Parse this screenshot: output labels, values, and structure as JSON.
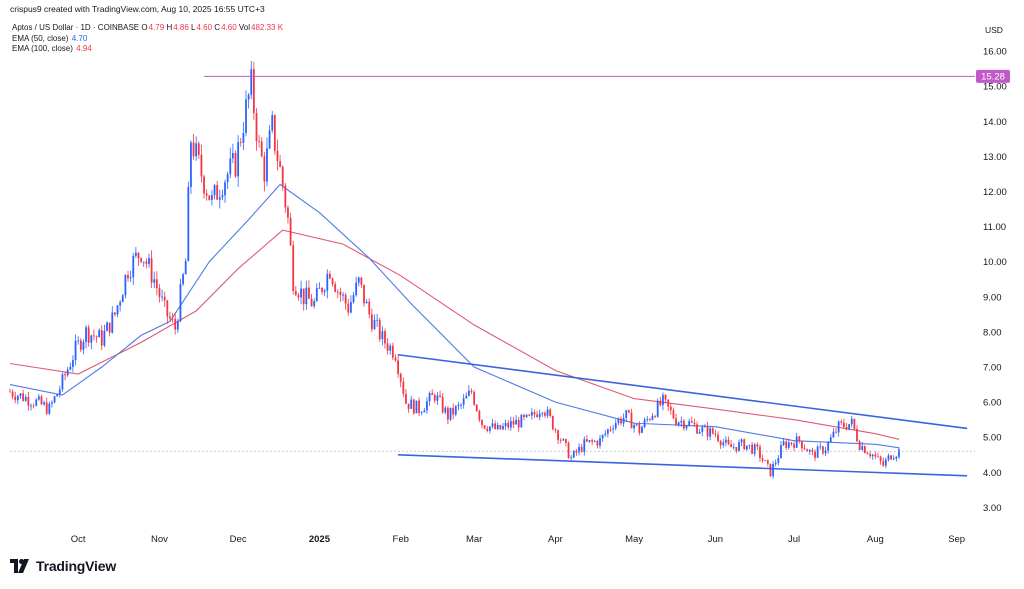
{
  "header": {
    "credit": "crispus9 created with TradingView.com, Aug 10, 2025 16:55 UTC+3"
  },
  "legend": {
    "symbol": "Aptos / US Dollar · 1D · COINBASE",
    "ohlc": [
      {
        "label": "O",
        "value": "4.79"
      },
      {
        "label": "H",
        "value": "4.86"
      },
      {
        "label": "L",
        "value": "4.60"
      },
      {
        "label": "C",
        "value": "4.60"
      },
      {
        "label": "Vol",
        "value": "482.33 K"
      }
    ],
    "ema50": {
      "label": "EMA (50, close)",
      "value": "4.70"
    },
    "ema100": {
      "label": "EMA (100, close)",
      "value": "4.94"
    }
  },
  "currency": "USD",
  "brand": {
    "name": "TradingView"
  },
  "colors": {
    "up": "#2962ff",
    "down": "#f23645",
    "ema50": "#4f7be8",
    "ema100": "#e05a74",
    "resistance_line": "#c258c9",
    "trendline": "#3b63e0",
    "current_price_line": "#9aa0ad"
  },
  "chart_data": {
    "type": "candlestick",
    "title": "Aptos / US Dollar · 1D · COINBASE",
    "y_axis": {
      "label": "USD",
      "range": [
        2.5,
        16.6
      ],
      "ticks": [
        3.0,
        4.0,
        5.0,
        6.0,
        7.0,
        8.0,
        9.0,
        10.0,
        11.0,
        12.0,
        13.0,
        14.0,
        15.0,
        16.0
      ]
    },
    "x_axis": {
      "range": [
        "2024-09-05",
        "2025-09-08"
      ],
      "ticks": [
        {
          "date": "2024-10-01",
          "label": "Oct"
        },
        {
          "date": "2024-11-01",
          "label": "Nov"
        },
        {
          "date": "2024-12-01",
          "label": "Dec"
        },
        {
          "date": "2025-01-01",
          "label": "2025",
          "bold": true
        },
        {
          "date": "2025-02-01",
          "label": "Feb"
        },
        {
          "date": "2025-03-01",
          "label": "Mar"
        },
        {
          "date": "2025-04-01",
          "label": "Apr"
        },
        {
          "date": "2025-05-01",
          "label": "May"
        },
        {
          "date": "2025-06-01",
          "label": "Jun"
        },
        {
          "date": "2025-07-01",
          "label": "Jul"
        },
        {
          "date": "2025-08-01",
          "label": "Aug"
        },
        {
          "date": "2025-09-01",
          "label": "Sep"
        }
      ]
    },
    "close_series": [
      {
        "date": "2024-09-05",
        "close": 6.3
      },
      {
        "date": "2024-09-15",
        "close": 6.0
      },
      {
        "date": "2024-09-20",
        "close": 5.8
      },
      {
        "date": "2024-09-24",
        "close": 6.4
      },
      {
        "date": "2024-09-30",
        "close": 7.5
      },
      {
        "date": "2024-10-04",
        "close": 8.0
      },
      {
        "date": "2024-10-10",
        "close": 7.8
      },
      {
        "date": "2024-10-15",
        "close": 8.5
      },
      {
        "date": "2024-10-20",
        "close": 9.8
      },
      {
        "date": "2024-10-25",
        "close": 10.3
      },
      {
        "date": "2024-10-30",
        "close": 9.5
      },
      {
        "date": "2024-11-03",
        "close": 8.6
      },
      {
        "date": "2024-11-07",
        "close": 8.1
      },
      {
        "date": "2024-11-11",
        "close": 10.0
      },
      {
        "date": "2024-11-13",
        "close": 13.5
      },
      {
        "date": "2024-11-17",
        "close": 12.5
      },
      {
        "date": "2024-11-21",
        "close": 11.7
      },
      {
        "date": "2024-11-25",
        "close": 12.3
      },
      {
        "date": "2024-11-30",
        "close": 12.8
      },
      {
        "date": "2024-12-03",
        "close": 14.0
      },
      {
        "date": "2024-12-06",
        "close": 15.0
      },
      {
        "date": "2024-12-09",
        "close": 13.2
      },
      {
        "date": "2024-12-11",
        "close": 12.6
      },
      {
        "date": "2024-12-14",
        "close": 13.8
      },
      {
        "date": "2024-12-18",
        "close": 12.2
      },
      {
        "date": "2024-12-20",
        "close": 11.2
      },
      {
        "date": "2024-12-22",
        "close": 9.5
      },
      {
        "date": "2024-12-26",
        "close": 9.0
      },
      {
        "date": "2024-12-30",
        "close": 8.8
      },
      {
        "date": "2025-01-05",
        "close": 9.8
      },
      {
        "date": "2025-01-08",
        "close": 9.2
      },
      {
        "date": "2025-01-12",
        "close": 8.7
      },
      {
        "date": "2025-01-16",
        "close": 9.4
      },
      {
        "date": "2025-01-20",
        "close": 8.5
      },
      {
        "date": "2025-01-25",
        "close": 7.8
      },
      {
        "date": "2025-01-30",
        "close": 7.4
      },
      {
        "date": "2025-02-03",
        "close": 6.0
      },
      {
        "date": "2025-02-08",
        "close": 5.8
      },
      {
        "date": "2025-02-14",
        "close": 6.2
      },
      {
        "date": "2025-02-19",
        "close": 5.6
      },
      {
        "date": "2025-02-24",
        "close": 5.9
      },
      {
        "date": "2025-02-28",
        "close": 6.3
      },
      {
        "date": "2025-03-04",
        "close": 5.4
      },
      {
        "date": "2025-03-10",
        "close": 5.2
      },
      {
        "date": "2025-03-16",
        "close": 5.4
      },
      {
        "date": "2025-03-22",
        "close": 5.5
      },
      {
        "date": "2025-03-27",
        "close": 5.9
      },
      {
        "date": "2025-04-02",
        "close": 5.1
      },
      {
        "date": "2025-04-07",
        "close": 4.4
      },
      {
        "date": "2025-04-12",
        "close": 4.8
      },
      {
        "date": "2025-04-18",
        "close": 4.9
      },
      {
        "date": "2025-04-23",
        "close": 5.4
      },
      {
        "date": "2025-04-28",
        "close": 5.6
      },
      {
        "date": "2025-05-03",
        "close": 5.2
      },
      {
        "date": "2025-05-08",
        "close": 5.7
      },
      {
        "date": "2025-05-12",
        "close": 6.0
      },
      {
        "date": "2025-05-17",
        "close": 5.5
      },
      {
        "date": "2025-05-22",
        "close": 5.4
      },
      {
        "date": "2025-05-27",
        "close": 5.2
      },
      {
        "date": "2025-06-01",
        "close": 5.1
      },
      {
        "date": "2025-06-06",
        "close": 4.7
      },
      {
        "date": "2025-06-12",
        "close": 4.8
      },
      {
        "date": "2025-06-17",
        "close": 4.6
      },
      {
        "date": "2025-06-22",
        "close": 4.0
      },
      {
        "date": "2025-06-27",
        "close": 4.8
      },
      {
        "date": "2025-07-03",
        "close": 4.9
      },
      {
        "date": "2025-07-08",
        "close": 4.5
      },
      {
        "date": "2025-07-13",
        "close": 4.7
      },
      {
        "date": "2025-07-18",
        "close": 5.3
      },
      {
        "date": "2025-07-23",
        "close": 5.4
      },
      {
        "date": "2025-07-26",
        "close": 4.8
      },
      {
        "date": "2025-07-31",
        "close": 4.5
      },
      {
        "date": "2025-08-04",
        "close": 4.2
      },
      {
        "date": "2025-08-07",
        "close": 4.5
      },
      {
        "date": "2025-08-10",
        "close": 4.6
      }
    ],
    "ema50_series": [
      {
        "date": "2024-09-05",
        "value": 6.5
      },
      {
        "date": "2024-09-25",
        "value": 6.2
      },
      {
        "date": "2024-10-10",
        "value": 7.0
      },
      {
        "date": "2024-10-25",
        "value": 7.9
      },
      {
        "date": "2024-11-05",
        "value": 8.3
      },
      {
        "date": "2024-11-20",
        "value": 10.0
      },
      {
        "date": "2024-12-05",
        "value": 11.2
      },
      {
        "date": "2024-12-17",
        "value": 12.2
      },
      {
        "date": "2025-01-01",
        "value": 11.4
      },
      {
        "date": "2025-01-20",
        "value": 10.1
      },
      {
        "date": "2025-02-05",
        "value": 8.8
      },
      {
        "date": "2025-03-01",
        "value": 7.0
      },
      {
        "date": "2025-04-01",
        "value": 6.0
      },
      {
        "date": "2025-05-01",
        "value": 5.4
      },
      {
        "date": "2025-06-01",
        "value": 5.3
      },
      {
        "date": "2025-07-01",
        "value": 4.9
      },
      {
        "date": "2025-08-01",
        "value": 4.8
      },
      {
        "date": "2025-08-10",
        "value": 4.7
      }
    ],
    "ema100_series": [
      {
        "date": "2024-09-05",
        "value": 7.1
      },
      {
        "date": "2024-10-01",
        "value": 6.8
      },
      {
        "date": "2024-10-25",
        "value": 7.7
      },
      {
        "date": "2024-11-15",
        "value": 8.6
      },
      {
        "date": "2024-12-01",
        "value": 9.8
      },
      {
        "date": "2024-12-18",
        "value": 10.9
      },
      {
        "date": "2025-01-10",
        "value": 10.5
      },
      {
        "date": "2025-02-01",
        "value": 9.6
      },
      {
        "date": "2025-03-01",
        "value": 8.2
      },
      {
        "date": "2025-04-01",
        "value": 6.9
      },
      {
        "date": "2025-05-01",
        "value": 6.1
      },
      {
        "date": "2025-06-01",
        "value": 5.8
      },
      {
        "date": "2025-07-01",
        "value": 5.5
      },
      {
        "date": "2025-08-01",
        "value": 5.1
      },
      {
        "date": "2025-08-10",
        "value": 4.94
      }
    ],
    "resistance_level": {
      "value": 15.28,
      "label": "15.28",
      "from_date": "2024-11-18"
    },
    "trendlines": [
      {
        "name": "upper",
        "from": {
          "date": "2025-01-31",
          "value": 7.35
        },
        "to": {
          "date": "2025-09-05",
          "value": 5.25
        }
      },
      {
        "name": "lower",
        "from": {
          "date": "2025-01-31",
          "value": 4.5
        },
        "to": {
          "date": "2025-09-05",
          "value": 3.9
        }
      }
    ],
    "current_price": 4.6
  }
}
